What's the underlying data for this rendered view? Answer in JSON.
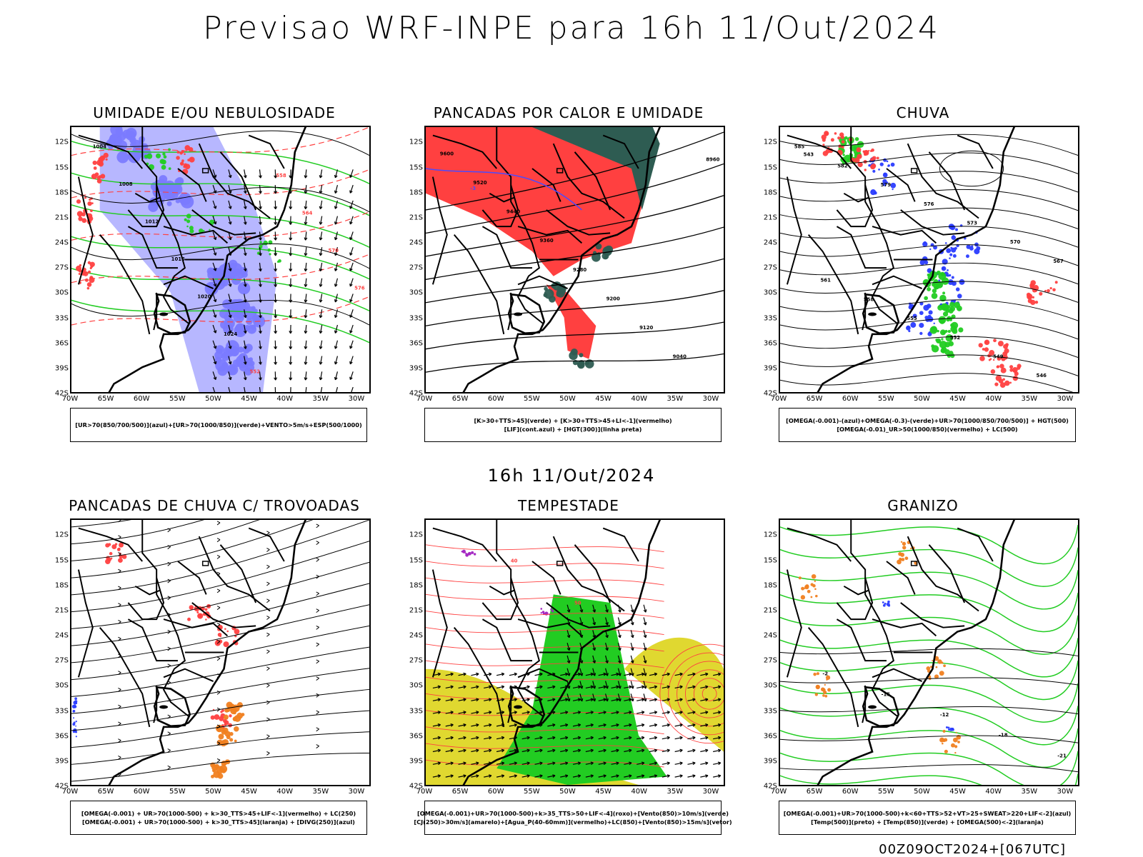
{
  "title": "Previsao WRF-INPE  para 16h 11/Out/2024",
  "mid_title": "16h 11/Out/2024",
  "footer": "00Z09OCT2024+[067UTC]",
  "axes": {
    "lat_labels": [
      "12S",
      "15S",
      "18S",
      "21S",
      "24S",
      "27S",
      "30S",
      "33S",
      "36S",
      "39S",
      "42S"
    ],
    "lon_labels": [
      "70W",
      "65W",
      "60W",
      "55W",
      "50W",
      "45W",
      "40W",
      "35W",
      "30W"
    ]
  },
  "colors": {
    "blue_moist": "#7b7bff",
    "green": "#22cc22",
    "red": "#ff4040",
    "dark_teal": "#2e5c52",
    "yellow": "#e0d830",
    "orange": "#f08020",
    "purple": "#a020c0",
    "contour_black": "#000000"
  },
  "panels": [
    {
      "id": "umidade",
      "title": "UMIDADE E/OU NEBULOSIDADE",
      "legend": [
        "[UR>70(850/700/500)](azul)+[UR>70(1000/850)](verde)+VENTO>5m/s+ESP(500/1000)"
      ],
      "contour_labels": [
        "1004",
        "1008",
        "1012",
        "1016",
        "1020",
        "1024",
        "552",
        "558",
        "564",
        "570",
        "576"
      ]
    },
    {
      "id": "pancadas-calor",
      "title": "PANCADAS POR CALOR E UMIDADE",
      "legend": [
        "[K>30+TTS>45](verde) + [K>30+TTS>45+LI<-1](vermelho)",
        "[LIF](cont.azul) + [HGT(300)](linha preta)"
      ],
      "contour_labels": [
        "9600",
        "9520",
        "9440",
        "9360",
        "9280",
        "9200",
        "9120",
        "9040",
        "8960",
        "-3"
      ]
    },
    {
      "id": "chuva",
      "title": "CHUVA",
      "legend": [
        "[OMEGA(-0.001)-(azul)+OMEGA(-0.3)-(verde)+UR>70(1000/850/700/500)] + HGT(500)",
        "[OMEGA(-0.01)_UR>50(1000/850)(vermelho) + LC(500)"
      ],
      "contour_labels": [
        "585",
        "582",
        "579",
        "576",
        "573",
        "570",
        "567",
        "561",
        "558",
        "555",
        "552",
        "549",
        "546",
        "543"
      ]
    },
    {
      "id": "pancadas-trovoadas",
      "title": "PANCADAS DE CHUVA C/ TROVOADAS",
      "legend": [
        "[OMEGA(-0.001) + UR>70(1000-500) + k>30_TTS>45+LIF<-1](vermelho) + LC(250)",
        "[OMEGA(-0.001) + UR>70(1000-500) + k>30_TTS>45](laranja) + [DIVG(250)](azul)"
      ],
      "contour_labels": []
    },
    {
      "id": "tempestade",
      "title": "TEMPESTADE",
      "legend": [
        "[OMEGA(-0.001)+UR>70(1000-500)+k>35_TTS>50+LIF<-4](roxo)+[Vento(850)>10m/s](verde)",
        "[CJ(250)>30m/s](amarelo)+[Agua_P(40-60mm)](vermelho)+LC(850)+[Vento(850)>15m/s](vetor)"
      ],
      "contour_labels": [
        "40",
        "50"
      ]
    },
    {
      "id": "granizo",
      "title": "GRANIZO",
      "legend": [
        "[OMEGA(-0.001)+UR>70(1000-500)+k<60+TTS>52+VT>25+SWEAT>220+LIF<-2](azul)",
        "[Temp(500)](preto) + [Temp(850)](verde) + [OMEGA(500)<-2](laranja)"
      ],
      "contour_labels": [
        "-2",
        "-15",
        "-12",
        "-18",
        "-21"
      ]
    }
  ]
}
